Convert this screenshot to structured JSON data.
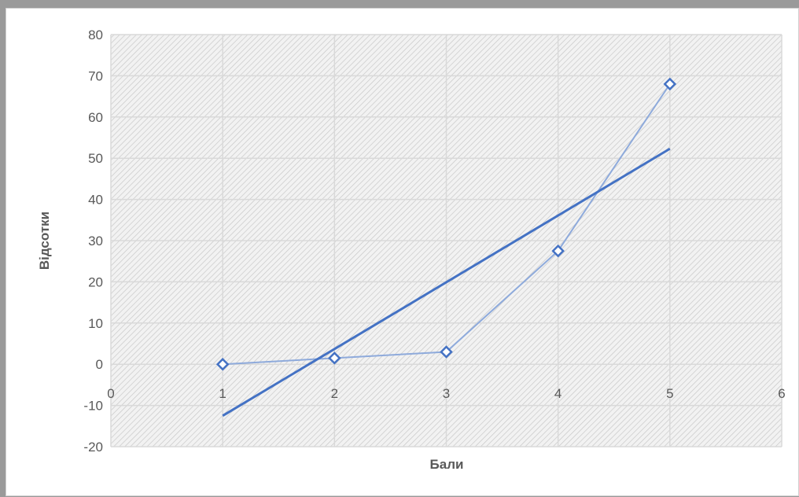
{
  "chart_data": {
    "type": "scatter",
    "title": "",
    "xlabel": "Бали",
    "ylabel": "Відсотки",
    "xlim": [
      0,
      6
    ],
    "ylim": [
      -20,
      80
    ],
    "x_ticks": [
      0,
      1,
      2,
      3,
      4,
      5,
      6
    ],
    "y_ticks": [
      -20,
      -10,
      0,
      10,
      20,
      30,
      40,
      50,
      60,
      70,
      80
    ],
    "grid": true,
    "legend": "none",
    "series": [
      {
        "kind": "scatter-with-lines",
        "marker": "diamond-open",
        "color": "#4472c4",
        "x": [
          1,
          2,
          3,
          4,
          5
        ],
        "y": [
          0,
          1.5,
          3,
          27.5,
          68
        ]
      },
      {
        "kind": "linear-trendline",
        "color": "#4472c4",
        "x": [
          1,
          5
        ],
        "y": [
          -12.5,
          52.3
        ]
      }
    ]
  }
}
